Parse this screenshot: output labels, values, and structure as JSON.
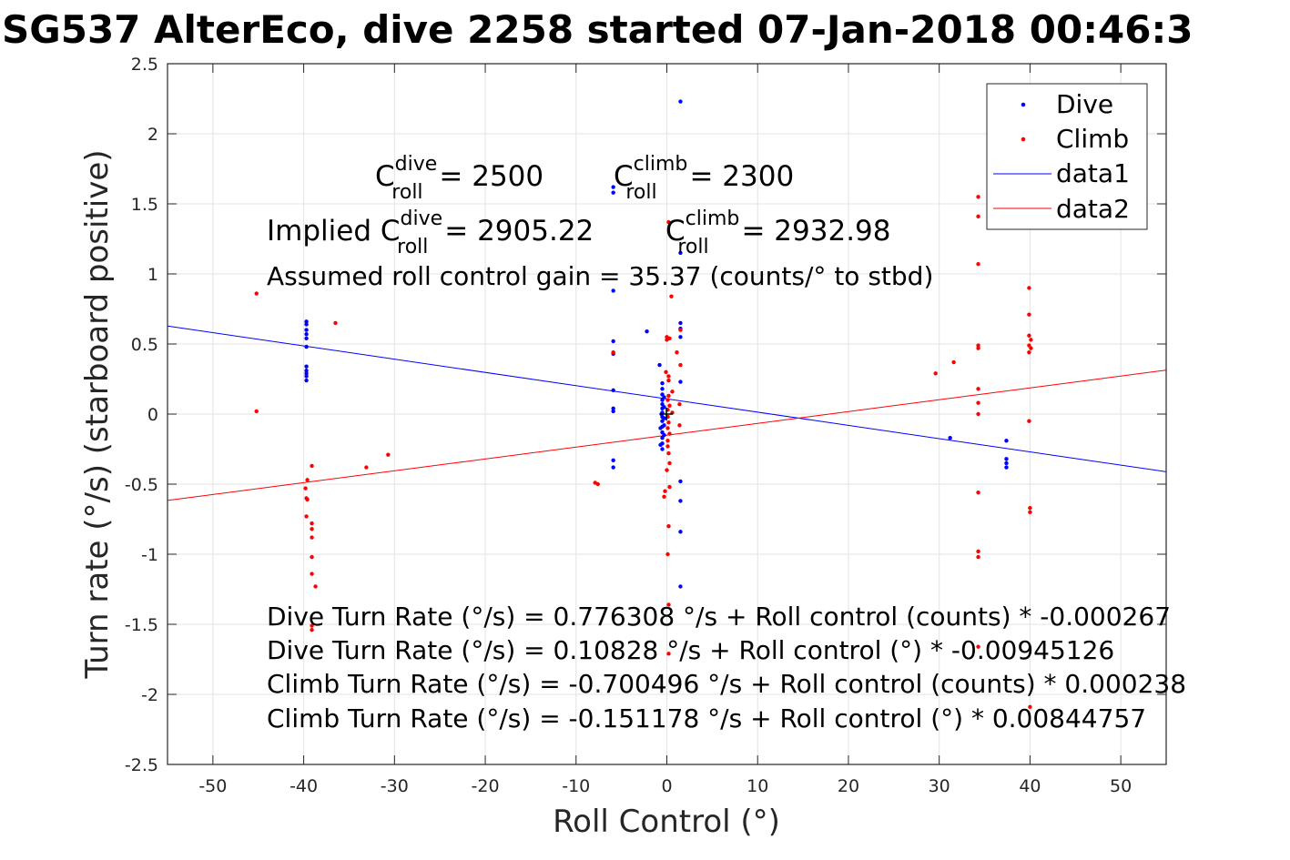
{
  "chart_data": {
    "type": "scatter",
    "title": "SG537 AlterEco, dive 2258 started 07-Jan-2018 00:46:3",
    "xlabel": "Roll Control (°)",
    "ylabel": "Turn rate (°/s) (starboard positive)",
    "xlim": [
      -55,
      55
    ],
    "ylim": [
      -2.5,
      2.5
    ],
    "xticks": [
      -50,
      -40,
      -30,
      -20,
      -10,
      0,
      10,
      20,
      30,
      40,
      50
    ],
    "yticks": [
      2.5,
      2,
      1.5,
      1,
      0.5,
      0,
      -0.5,
      -1,
      -1.5,
      -2,
      -2.5
    ],
    "grid": true,
    "legend": {
      "position": "top-right",
      "entries": [
        "Dive",
        "Climb",
        "data1",
        "data2"
      ]
    },
    "annotations": {
      "c_dive_prefix": "C",
      "c_dive_sup": "dive",
      "c_dive_sub": "roll",
      "c_dive_value": " = 2500",
      "c_climb_prefix": "C",
      "c_climb_sup": "climb",
      "c_climb_sub": "roll",
      "c_climb_value": " = 2300",
      "implied_label": "Implied C",
      "implied_dive_sup": "dive",
      "implied_dive_sub": "roll",
      "implied_dive_value": " = 2905.22",
      "implied_climb_prefix": "C",
      "implied_climb_sup": "climb",
      "implied_climb_sub": "roll",
      "implied_climb_value": " = 2932.98",
      "gain_text": "Assumed roll control gain = 35.37 (counts/° to stbd)",
      "eq1": "Dive Turn Rate (°/s) = 0.776308 °/s + Roll control (counts) * -0.000267",
      "eq2": "Dive Turn Rate (°/s) = 0.10828 °/s + Roll control (°) * -0.00945126",
      "eq3": "Climb Turn Rate (°/s) = -0.700496 °/s + Roll control (counts) * 0.000238",
      "eq4": "Climb Turn Rate (°/s) = -0.151178 °/s + Roll control (°) * 0.00844757"
    },
    "series": [
      {
        "name": "Dive",
        "color": "#0000ff",
        "kind": "points",
        "points": [
          [
            -39.7,
            0.66
          ],
          [
            -39.7,
            0.64
          ],
          [
            -39.7,
            0.6
          ],
          [
            -39.7,
            0.57
          ],
          [
            -39.7,
            0.54
          ],
          [
            -39.7,
            0.48
          ],
          [
            -39.7,
            0.34
          ],
          [
            -39.7,
            0.31
          ],
          [
            -39.7,
            0.29
          ],
          [
            -39.7,
            0.27
          ],
          [
            -39.7,
            0.24
          ],
          [
            1.5,
            2.23
          ],
          [
            -5.9,
            1.62
          ],
          [
            -5.9,
            1.58
          ],
          [
            -5.9,
            0.88
          ],
          [
            -5.9,
            0.52
          ],
          [
            -5.9,
            0.43
          ],
          [
            -5.9,
            0.17
          ],
          [
            -5.9,
            0.04
          ],
          [
            -5.9,
            0.02
          ],
          [
            -5.9,
            -0.33
          ],
          [
            -5.9,
            -0.38
          ],
          [
            -2.2,
            0.59
          ],
          [
            -0.8,
            0.35
          ],
          [
            1.5,
            1.15
          ],
          [
            1.5,
            0.65
          ],
          [
            1.5,
            0.61
          ],
          [
            1.5,
            0.55
          ],
          [
            1.5,
            0.23
          ],
          [
            1.5,
            -0.48
          ],
          [
            1.5,
            -0.62
          ],
          [
            1.5,
            -0.84
          ],
          [
            1.5,
            -1.23
          ],
          [
            -0.5,
            0.22
          ],
          [
            -0.5,
            0.18
          ],
          [
            -0.5,
            0.14
          ],
          [
            -0.5,
            0.1
          ],
          [
            -0.5,
            0.07
          ],
          [
            -0.5,
            0.04
          ],
          [
            -0.5,
            0.01
          ],
          [
            -0.5,
            -0.02
          ],
          [
            -0.5,
            -0.05
          ],
          [
            -0.5,
            -0.09
          ],
          [
            -0.5,
            -0.13
          ],
          [
            -0.5,
            -0.17
          ],
          [
            -0.5,
            -0.21
          ],
          [
            -0.5,
            -0.25
          ],
          [
            -0.3,
            0.12
          ],
          [
            -0.3,
            0.05
          ],
          [
            -0.3,
            -0.03
          ],
          [
            -0.3,
            -0.08
          ],
          [
            -0.3,
            -0.15
          ],
          [
            -0.7,
            -0.1
          ],
          [
            -0.7,
            -0.22
          ],
          [
            -0.6,
            0.0
          ],
          [
            31.2,
            -0.17
          ],
          [
            37.4,
            -0.19
          ],
          [
            37.4,
            -0.32
          ],
          [
            37.4,
            -0.35
          ],
          [
            37.4,
            -0.38
          ]
        ]
      },
      {
        "name": "Climb",
        "color": "#ff0000",
        "kind": "points",
        "points": [
          [
            -45.2,
            0.86
          ],
          [
            -45.2,
            0.02
          ],
          [
            -36.5,
            0.65
          ],
          [
            -30.7,
            -0.29
          ],
          [
            -33.1,
            -0.38
          ],
          [
            -39.1,
            -0.37
          ],
          [
            -39.6,
            -0.47
          ],
          [
            -39.8,
            -0.53
          ],
          [
            -39.7,
            -0.6
          ],
          [
            -39.6,
            -0.61
          ],
          [
            -39.7,
            -0.73
          ],
          [
            -39.1,
            -0.78
          ],
          [
            -39.1,
            -0.82
          ],
          [
            -39.1,
            -0.88
          ],
          [
            -39.1,
            -1.02
          ],
          [
            -39.1,
            -1.14
          ],
          [
            -38.7,
            -1.23
          ],
          [
            -39.1,
            -1.51
          ],
          [
            -39.1,
            -1.54
          ],
          [
            -7.9,
            -0.49
          ],
          [
            -7.6,
            -0.5
          ],
          [
            -5.9,
            0.44
          ],
          [
            0.2,
            1.37
          ],
          [
            0.5,
            0.84
          ],
          [
            0.0,
            0.55
          ],
          [
            0.0,
            0.53
          ],
          [
            0.3,
            0.54
          ],
          [
            -0.1,
            0.3
          ],
          [
            0.2,
            0.27
          ],
          [
            0.2,
            0.24
          ],
          [
            0.6,
            0.16
          ],
          [
            0.2,
            0.13
          ],
          [
            0.1,
            0.1
          ],
          [
            0.3,
            0.06
          ],
          [
            0.1,
            0.03
          ],
          [
            0.6,
            0.01
          ],
          [
            0.1,
            -0.02
          ],
          [
            0.2,
            -0.06
          ],
          [
            0.1,
            -0.1
          ],
          [
            0.3,
            -0.14
          ],
          [
            0.1,
            -0.19
          ],
          [
            0.1,
            -0.23
          ],
          [
            0.2,
            -0.28
          ],
          [
            0.3,
            -0.35
          ],
          [
            0.0,
            -0.4
          ],
          [
            0.3,
            -0.52
          ],
          [
            -0.2,
            -0.55
          ],
          [
            -0.3,
            -0.59
          ],
          [
            0.2,
            -0.8
          ],
          [
            0.1,
            -1.0
          ],
          [
            0.2,
            -1.36
          ],
          [
            0.2,
            -1.71
          ],
          [
            1.1,
            0.44
          ],
          [
            1.5,
            0.6
          ],
          [
            1.5,
            0.35
          ],
          [
            1.4,
            0.07
          ],
          [
            1.4,
            -0.08
          ],
          [
            29.6,
            0.29
          ],
          [
            31.6,
            0.37
          ],
          [
            34.3,
            1.55
          ],
          [
            34.3,
            1.41
          ],
          [
            34.3,
            1.07
          ],
          [
            34.3,
            0.49
          ],
          [
            34.3,
            0.47
          ],
          [
            34.3,
            0.18
          ],
          [
            34.3,
            0.08
          ],
          [
            34.3,
            0.0
          ],
          [
            34.3,
            -0.56
          ],
          [
            34.3,
            -0.98
          ],
          [
            34.3,
            -1.02
          ],
          [
            34.3,
            -1.66
          ],
          [
            39.9,
            0.9
          ],
          [
            39.9,
            0.71
          ],
          [
            39.9,
            0.56
          ],
          [
            40.1,
            0.53
          ],
          [
            39.9,
            0.49
          ],
          [
            40.1,
            0.47
          ],
          [
            39.9,
            0.44
          ],
          [
            39.9,
            -0.05
          ],
          [
            40.0,
            -0.67
          ],
          [
            40.0,
            -0.7
          ],
          [
            40.0,
            -2.09
          ]
        ]
      },
      {
        "name": "data1",
        "color": "#0000ff",
        "kind": "line",
        "intercept": 0.10828,
        "slope": -0.00945126
      },
      {
        "name": "data2",
        "color": "#ff0000",
        "kind": "line",
        "intercept": -0.151178,
        "slope": 0.00844757
      }
    ]
  }
}
